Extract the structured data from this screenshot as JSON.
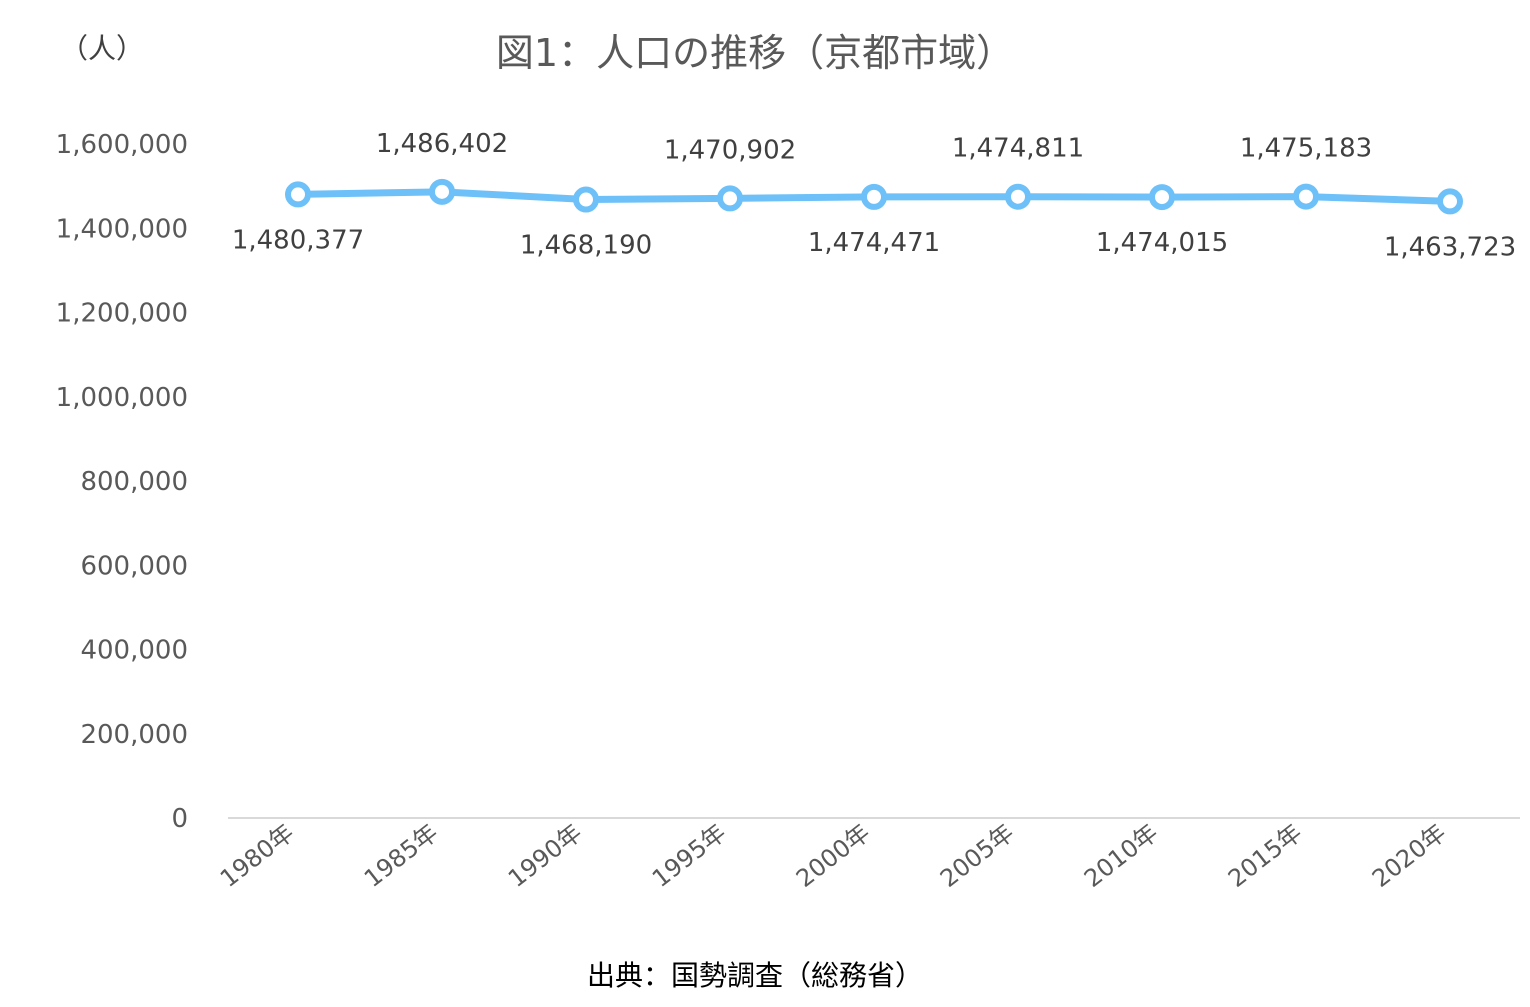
{
  "chart_data": {
    "type": "line",
    "title": "図1：人口の推移（京都市域）",
    "ylabel": "（人）",
    "source": "出典：国勢調査（総務省）",
    "categories": [
      "1980年",
      "1985年",
      "1990年",
      "1995年",
      "2000年",
      "2005年",
      "2010年",
      "2015年",
      "2020年"
    ],
    "values": [
      1480377,
      1486402,
      1468190,
      1470902,
      1474471,
      1474811,
      1474015,
      1475183,
      1463723
    ],
    "data_labels": [
      "1,480,377",
      "1,486,402",
      "1,468,190",
      "1,470,902",
      "1,474,471",
      "1,474,811",
      "1,474,015",
      "1,475,183",
      "1,463,723"
    ],
    "label_positions": [
      "below",
      "above",
      "below",
      "above",
      "below",
      "above",
      "below",
      "above",
      "below"
    ],
    "ylim": [
      0,
      1600000
    ],
    "yticks": [
      "0",
      "200,000",
      "400,000",
      "600,000",
      "800,000",
      "1,000,000",
      "1,200,000",
      "1,400,000",
      "1,600,000"
    ],
    "grid": false,
    "legend": "none",
    "colors": {
      "series": "#6EC1F8",
      "marker_fill": "#ffffff",
      "axis": "#d9d9d9"
    }
  }
}
